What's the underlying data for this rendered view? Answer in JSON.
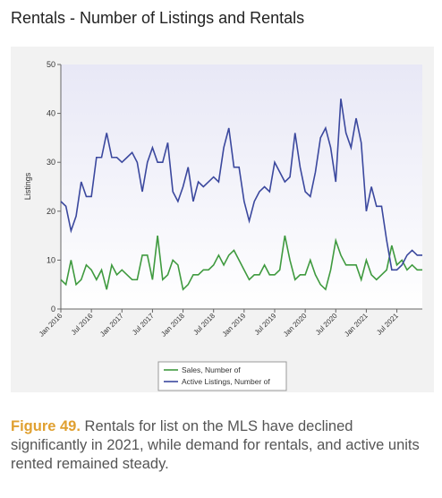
{
  "chart_data": {
    "type": "line",
    "title": "Rentals - Number of Listings and Rentals",
    "figure_label": "Figure 49.",
    "caption": "Rentals for list on the MLS have declined significantly in 2021, while demand for rentals, and active units rented remained steady.",
    "y_label": "Listings",
    "categories": [
      "Jan 2016",
      null,
      null,
      null,
      null,
      null,
      "Jul 2016",
      null,
      null,
      null,
      null,
      null,
      "Jan 2017",
      null,
      null,
      null,
      null,
      null,
      "Jul 2017",
      null,
      null,
      null,
      null,
      null,
      "Jan 2018",
      null,
      null,
      null,
      null,
      null,
      "Jul 2018",
      null,
      null,
      null,
      null,
      null,
      "Jan 2019",
      null,
      null,
      null,
      null,
      null,
      "Jul 2019",
      null,
      null,
      null,
      null,
      null,
      "Jan 2020",
      null,
      null,
      null,
      null,
      null,
      "Jul 2020",
      null,
      null,
      null,
      null,
      null,
      "Jan 2021",
      null,
      null,
      null,
      null,
      null,
      "Jul 2021",
      null,
      null,
      null,
      null,
      null
    ],
    "series": [
      {
        "name": "Sales, Number of",
        "color": "#3f9a3f",
        "values": [
          6,
          5,
          10,
          5,
          6,
          9,
          8,
          6,
          8,
          4,
          9,
          7,
          8,
          7,
          6,
          6,
          11,
          11,
          6,
          15,
          6,
          7,
          10,
          9,
          4,
          5,
          7,
          7,
          8,
          8,
          9,
          11,
          9,
          11,
          12,
          10,
          8,
          6,
          7,
          7,
          9,
          7,
          7,
          8,
          15,
          10,
          6,
          7,
          7,
          10,
          7,
          5,
          4,
          8,
          14,
          11,
          9,
          9,
          9,
          6,
          10,
          7,
          6,
          7,
          8,
          13,
          9,
          10,
          8,
          9,
          8,
          8
        ]
      },
      {
        "name": "Active Listings, Number of",
        "color": "#3b489e",
        "values": [
          22,
          21,
          16,
          19,
          26,
          23,
          23,
          31,
          31,
          36,
          31,
          31,
          30,
          31,
          32,
          30,
          24,
          30,
          33,
          30,
          30,
          34,
          24,
          22,
          25,
          29,
          22,
          26,
          25,
          26,
          27,
          26,
          33,
          37,
          29,
          29,
          22,
          18,
          22,
          24,
          25,
          24,
          30,
          28,
          26,
          27,
          36,
          29,
          24,
          23,
          28,
          35,
          37,
          33,
          26,
          43,
          36,
          33,
          39,
          34,
          20,
          25,
          21,
          21,
          14,
          8,
          8,
          9,
          11,
          12,
          11,
          11
        ]
      }
    ],
    "ylim": [
      0,
      50
    ],
    "yticks": [
      0,
      10,
      20,
      30,
      40,
      50
    ],
    "grid": false
  }
}
